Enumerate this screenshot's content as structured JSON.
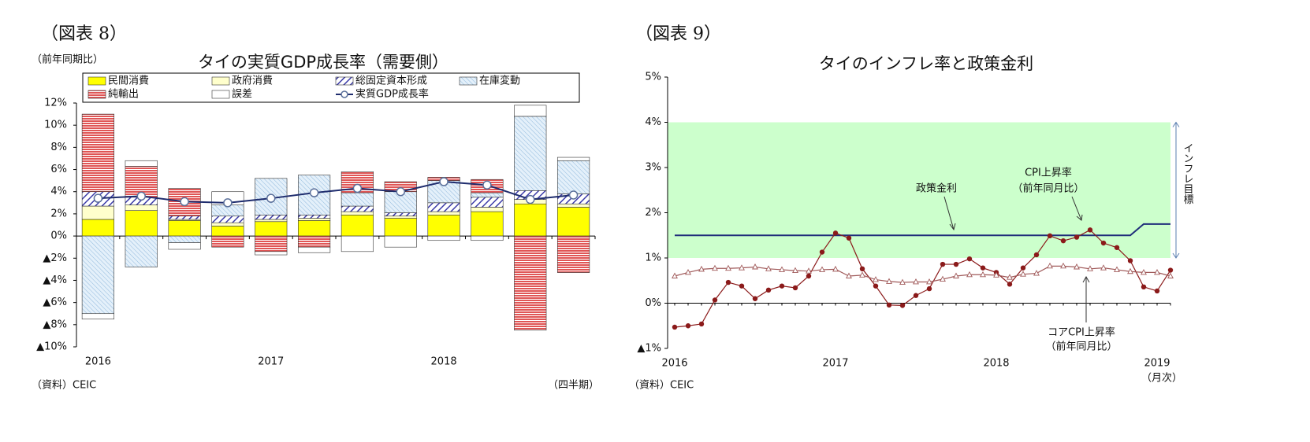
{
  "chart_data": [
    {
      "type": "bar",
      "stacked": true,
      "header": "（図表 8）",
      "title": "タイの実質GDP成長率（需要側）",
      "unit_label": "（前年同期比）",
      "source": "（資料）CEIC",
      "x_label": "（四半期）",
      "categories": [
        "2016",
        null,
        null,
        null,
        "2017",
        null,
        null,
        null,
        "2018",
        null,
        null,
        null
      ],
      "series": [
        {
          "name": "民間消費",
          "color": "#ffff00",
          "pattern": "solid",
          "values": [
            1.5,
            2.3,
            1.4,
            0.9,
            1.3,
            1.4,
            1.9,
            1.6,
            1.9,
            2.2,
            2.9,
            2.6
          ]
        },
        {
          "name": "政府消費",
          "color": "#ffffcc",
          "pattern": "solid",
          "values": [
            1.2,
            0.5,
            0.1,
            0.3,
            0.2,
            0.2,
            0.3,
            0.2,
            0.3,
            0.4,
            0.4,
            0.3
          ]
        },
        {
          "name": "総固定資本形成",
          "color": "#3b3ba8",
          "pattern": "diagonal",
          "values": [
            1.3,
            0.7,
            0.3,
            0.6,
            0.4,
            0.3,
            0.5,
            0.3,
            0.8,
            0.9,
            0.8,
            0.9
          ]
        },
        {
          "name": "在庫変動",
          "color": "#8fb8dc",
          "pattern": "diagonal-light",
          "values": [
            -7.0,
            -2.8,
            -0.6,
            1.0,
            3.3,
            3.6,
            1.2,
            1.9,
            2.0,
            0.4,
            6.7,
            3.0
          ]
        },
        {
          "name": "純輸出",
          "color": "#e05555",
          "pattern": "horizontal",
          "values": [
            7.0,
            2.8,
            2.5,
            -1.0,
            -1.4,
            -1.0,
            1.9,
            0.9,
            0.3,
            1.2,
            -8.5,
            -3.3
          ]
        },
        {
          "name": "誤差",
          "color": "#ffffff",
          "pattern": "solid",
          "values": [
            -0.5,
            0.5,
            -0.6,
            1.2,
            -0.3,
            -0.5,
            -1.4,
            -1.0,
            -0.4,
            -0.4,
            1.0,
            0.3
          ]
        },
        {
          "name": "実質GDP成長率",
          "type": "line",
          "color": "#1f2d6e",
          "values": [
            3.4,
            3.6,
            3.1,
            3.0,
            3.4,
            3.9,
            4.3,
            4.0,
            4.9,
            4.6,
            3.3,
            3.7
          ]
        }
      ],
      "ylim": [
        -10,
        12
      ],
      "yticks": [
        {
          "value": 12,
          "label": "12%"
        },
        {
          "value": 10,
          "label": "10%"
        },
        {
          "value": 8,
          "label": "8%"
        },
        {
          "value": 6,
          "label": "6%"
        },
        {
          "value": 4,
          "label": "4%"
        },
        {
          "value": 2,
          "label": "2%"
        },
        {
          "value": 0,
          "label": "0%"
        },
        {
          "value": -2,
          "label": "▲2%"
        },
        {
          "value": -4,
          "label": "▲4%"
        },
        {
          "value": -6,
          "label": "▲6%"
        },
        {
          "value": -8,
          "label": "▲8%"
        },
        {
          "value": -10,
          "label": "▲10%"
        }
      ],
      "legend": "top"
    },
    {
      "type": "line",
      "header": "（図表 9）",
      "title": "タイのインフレ率と政策金利",
      "source": "（資料）CEIC",
      "x_label": "（月次）",
      "categories": [
        "2016",
        null,
        null,
        null,
        null,
        null,
        null,
        null,
        null,
        null,
        null,
        null,
        "2017",
        null,
        null,
        null,
        null,
        null,
        null,
        null,
        null,
        null,
        null,
        null,
        "2018",
        null,
        null,
        null,
        null,
        null,
        null,
        null,
        null,
        null,
        null,
        null,
        "2019",
        null
      ],
      "series": [
        {
          "name": "政策金利",
          "color": "#1f2d7a",
          "marker": "none",
          "values": [
            1.5,
            1.5,
            1.5,
            1.5,
            1.5,
            1.5,
            1.5,
            1.5,
            1.5,
            1.5,
            1.5,
            1.5,
            1.5,
            1.5,
            1.5,
            1.5,
            1.5,
            1.5,
            1.5,
            1.5,
            1.5,
            1.5,
            1.5,
            1.5,
            1.5,
            1.5,
            1.5,
            1.5,
            1.5,
            1.5,
            1.5,
            1.5,
            1.5,
            1.5,
            1.5,
            1.75,
            1.75,
            1.75
          ]
        },
        {
          "name": "CPI上昇率",
          "color": "#8b1a1a",
          "marker": "circle",
          "values": [
            -0.53,
            -0.5,
            -0.46,
            0.07,
            0.46,
            0.38,
            0.1,
            0.29,
            0.38,
            0.34,
            0.6,
            1.13,
            1.55,
            1.44,
            0.76,
            0.38,
            -0.04,
            -0.05,
            0.17,
            0.32,
            0.86,
            0.86,
            0.98,
            0.78,
            0.68,
            0.42,
            0.78,
            1.07,
            1.49,
            1.38,
            1.46,
            1.62,
            1.33,
            1.23,
            0.94,
            0.36,
            0.27,
            0.73
          ]
        },
        {
          "name": "コアCPI上昇率",
          "color": "#a05a5a",
          "marker": "triangle",
          "values": [
            0.6,
            0.68,
            0.75,
            0.77,
            0.77,
            0.78,
            0.8,
            0.76,
            0.74,
            0.72,
            0.71,
            0.74,
            0.75,
            0.6,
            0.62,
            0.52,
            0.48,
            0.46,
            0.47,
            0.47,
            0.53,
            0.6,
            0.63,
            0.63,
            0.62,
            0.57,
            0.64,
            0.66,
            0.82,
            0.82,
            0.8,
            0.76,
            0.78,
            0.74,
            0.7,
            0.68,
            0.68,
            0.6
          ]
        }
      ],
      "annotations": [
        "（前年同月比）",
        "（前年同月比）"
      ],
      "target_band": {
        "range": [
          1,
          4
        ],
        "label": "インフレ目標",
        "color": "#ccffcc"
      },
      "ylim": [
        -1,
        5
      ],
      "yticks": [
        {
          "value": 5,
          "label": "5%"
        },
        {
          "value": 4,
          "label": "4%"
        },
        {
          "value": 3,
          "label": "3%"
        },
        {
          "value": 2,
          "label": "2%"
        },
        {
          "value": 1,
          "label": "1%"
        },
        {
          "value": 0,
          "label": "0%"
        },
        {
          "value": -1,
          "label": "▲1%"
        }
      ]
    }
  ]
}
